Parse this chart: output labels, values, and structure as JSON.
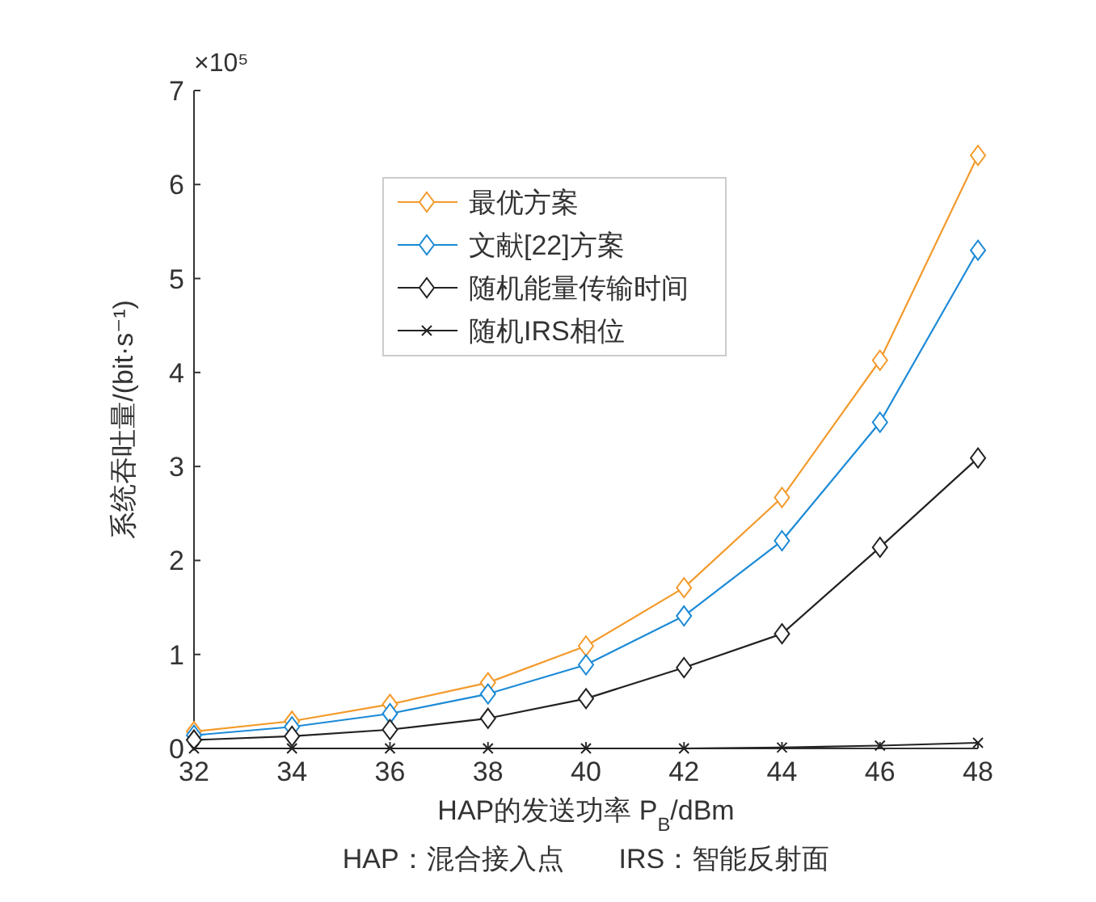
{
  "chart_data": {
    "type": "line",
    "xlabel": "HAP的发送功率 P$_{B}$/dBm",
    "ylabel": "系统吞吐量/(bit·s⁻¹)",
    "x": [
      32,
      34,
      36,
      38,
      40,
      42,
      44,
      46,
      48
    ],
    "xlim": [
      32,
      48
    ],
    "xticks": [
      32,
      34,
      36,
      38,
      40,
      42,
      44,
      46,
      48
    ],
    "ylim": [
      0,
      7
    ],
    "yticks": [
      0,
      1,
      2,
      3,
      4,
      5,
      6,
      7
    ],
    "legend": "top",
    "series": [
      {
        "name": "最优方案",
        "color": "#f39a2b",
        "marker": "diamond",
        "values": [
          0.18,
          0.29,
          0.47,
          0.7,
          1.09,
          1.71,
          2.67,
          4.13,
          6.31
        ]
      },
      {
        "name": "文献[22]方案",
        "color": "#1c8ad6",
        "marker": "diamond",
        "values": [
          0.14,
          0.23,
          0.37,
          0.58,
          0.89,
          1.41,
          2.21,
          3.47,
          5.3
        ]
      },
      {
        "name": "随机能量传输时间",
        "color": "#222222",
        "marker": "diamond",
        "values": [
          0.09,
          0.13,
          0.2,
          0.32,
          0.53,
          0.86,
          1.22,
          2.14,
          3.09
        ]
      },
      {
        "name": "随机IRS相位",
        "color": "#222222",
        "marker": "cross",
        "values": [
          0,
          0,
          0,
          0,
          0,
          0,
          0.01,
          0.03,
          0.06
        ]
      }
    ],
    "annotations": [
      "×10⁵",
      "HAP：混合接入点　　IRS：智能反射面"
    ]
  }
}
